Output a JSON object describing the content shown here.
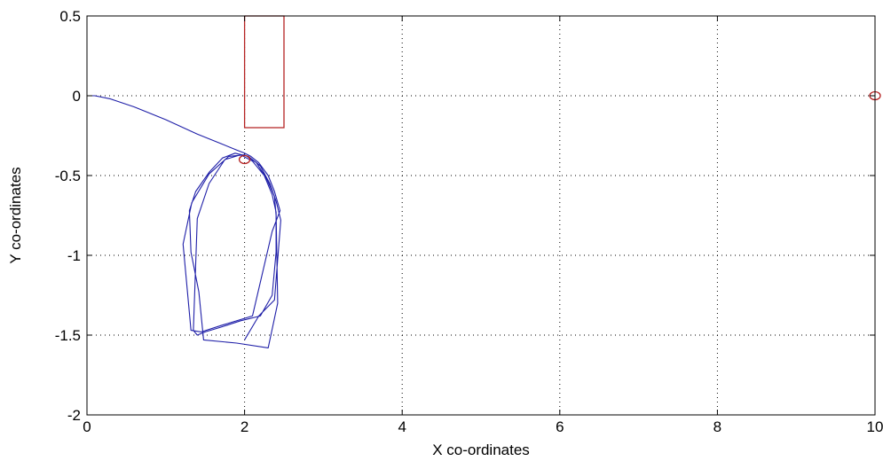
{
  "chart_data": {
    "type": "line",
    "title": "",
    "xlabel": "X co-ordinates",
    "ylabel": "Y co-ordinates",
    "xlim": [
      0,
      10
    ],
    "ylim": [
      -2,
      0.5
    ],
    "xticks": [
      0,
      2,
      4,
      6,
      8,
      10
    ],
    "yticks": [
      -2,
      -1.5,
      -1,
      -0.5,
      0,
      0.5
    ],
    "xtick_labels": [
      "0",
      "2",
      "4",
      "6",
      "8",
      "10"
    ],
    "ytick_labels": [
      "-2",
      "-1.5",
      "-1",
      "-0.5",
      "0",
      "0.5"
    ],
    "grid": true,
    "grid_style": "dotted",
    "series": [
      {
        "color": "#1f1fa8",
        "x": [
          0,
          0.1,
          0.3,
          0.6,
          1.0,
          1.4,
          1.7,
          1.9,
          2.0,
          2.08,
          2.18,
          2.3,
          2.38,
          2.45,
          2.35,
          2.1,
          1.7,
          1.45,
          1.32,
          1.22,
          1.33,
          1.55,
          1.8,
          2.0,
          2.15,
          2.28,
          2.38,
          2.4,
          2.4,
          2.35,
          2.2,
          1.95,
          1.7,
          1.5,
          1.4,
          1.35,
          1.4,
          1.55,
          1.75,
          1.95,
          2.1,
          2.25,
          2.35,
          2.4,
          2.42,
          2.3,
          1.9,
          1.48,
          1.42,
          1.32,
          1.3,
          1.38,
          1.55,
          1.72,
          1.88,
          2.05,
          2.2,
          2.32,
          2.4,
          2.46,
          2.38,
          2.18,
          2.0
        ],
        "y": [
          0,
          0,
          -0.02,
          -0.07,
          -0.15,
          -0.24,
          -0.3,
          -0.34,
          -0.36,
          -0.38,
          -0.42,
          -0.5,
          -0.6,
          -0.72,
          -0.85,
          -1.38,
          -1.44,
          -1.48,
          -1.47,
          -0.93,
          -0.67,
          -0.49,
          -0.38,
          -0.37,
          -0.42,
          -0.52,
          -0.63,
          -0.75,
          -0.98,
          -1.25,
          -1.38,
          -1.41,
          -1.45,
          -1.48,
          -1.5,
          -1.47,
          -0.77,
          -0.55,
          -0.4,
          -0.37,
          -0.41,
          -0.5,
          -0.62,
          -0.73,
          -1.3,
          -1.58,
          -1.55,
          -1.53,
          -1.23,
          -0.98,
          -0.72,
          -0.6,
          -0.48,
          -0.39,
          -0.36,
          -0.38,
          -0.44,
          -0.55,
          -0.66,
          -0.78,
          -1.28,
          -1.38,
          -1.53
        ]
      }
    ],
    "obstacle": {
      "color": "#b52323",
      "x": [
        2.0,
        2.5,
        2.5,
        2.0,
        2.0
      ],
      "y": [
        0.5,
        0.5,
        -0.2,
        -0.2,
        0.5
      ]
    },
    "markers": [
      {
        "x": 2.0,
        "y": -0.4,
        "color": "#b52323",
        "shape": "circle"
      },
      {
        "x": 10,
        "y": 0,
        "color": "#b52323",
        "shape": "circle"
      }
    ]
  }
}
